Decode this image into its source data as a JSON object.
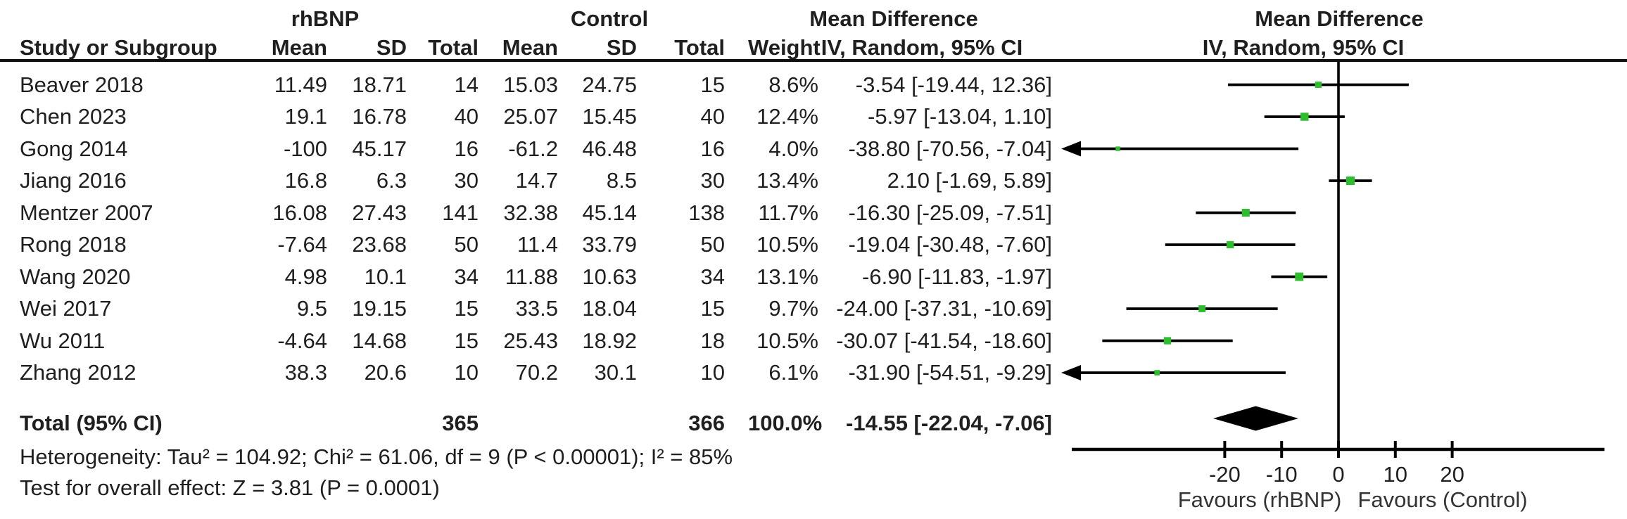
{
  "colors": {
    "marker_green": "#2DBE2D",
    "line_black": "#000000",
    "text_dark": "#1f1f1f",
    "text_gray": "#333333"
  },
  "header": {
    "columns": {
      "study": "Study or Subgroup",
      "mean": "Mean",
      "sd": "SD",
      "total": "Total",
      "weight": "Weight"
    }
  },
  "chart_data": {
    "type": "scatter",
    "subtype": "forest-plot-mean-difference",
    "group1_label": "rhBNP",
    "group2_label": "Control",
    "effect_label": "Mean Difference",
    "method_label": "IV, Random, 95% CI",
    "studies": [
      {
        "name": "Beaver 2018",
        "mean1": "11.49",
        "sd1": "18.71",
        "total1": "14",
        "mean2": "15.03",
        "sd2": "24.75",
        "total2": "15",
        "weight": "8.6%",
        "w": 8.6,
        "ci_text": "-3.54 [-19.44, 12.36]",
        "md": -3.54,
        "lo": -19.44,
        "hi": 12.36
      },
      {
        "name": "Chen 2023",
        "mean1": "19.1",
        "sd1": "16.78",
        "total1": "40",
        "mean2": "25.07",
        "sd2": "15.45",
        "total2": "40",
        "weight": "12.4%",
        "w": 12.4,
        "ci_text": "-5.97 [-13.04, 1.10]",
        "md": -5.97,
        "lo": -13.04,
        "hi": 1.1
      },
      {
        "name": "Gong 2014",
        "mean1": "-100",
        "sd1": "45.17",
        "total1": "16",
        "mean2": "-61.2",
        "sd2": "46.48",
        "total2": "16",
        "weight": "4.0%",
        "w": 4.0,
        "ci_text": "-38.80 [-70.56, -7.04]",
        "md": -38.8,
        "lo": -70.56,
        "hi": -7.04
      },
      {
        "name": "Jiang 2016",
        "mean1": "16.8",
        "sd1": "6.3",
        "total1": "30",
        "mean2": "14.7",
        "sd2": "8.5",
        "total2": "30",
        "weight": "13.4%",
        "w": 13.4,
        "ci_text": "2.10 [-1.69, 5.89]",
        "md": 2.1,
        "lo": -1.69,
        "hi": 5.89
      },
      {
        "name": "Mentzer 2007",
        "mean1": "16.08",
        "sd1": "27.43",
        "total1": "141",
        "mean2": "32.38",
        "sd2": "45.14",
        "total2": "138",
        "weight": "11.7%",
        "w": 11.7,
        "ci_text": "-16.30 [-25.09, -7.51]",
        "md": -16.3,
        "lo": -25.09,
        "hi": -7.51
      },
      {
        "name": "Rong 2018",
        "mean1": "-7.64",
        "sd1": "23.68",
        "total1": "50",
        "mean2": "11.4",
        "sd2": "33.79",
        "total2": "50",
        "weight": "10.5%",
        "w": 10.5,
        "ci_text": "-19.04 [-30.48, -7.60]",
        "md": -19.04,
        "lo": -30.48,
        "hi": -7.6
      },
      {
        "name": "Wang 2020",
        "mean1": "4.98",
        "sd1": "10.1",
        "total1": "34",
        "mean2": "11.88",
        "sd2": "10.63",
        "total2": "34",
        "weight": "13.1%",
        "w": 13.1,
        "ci_text": "-6.90 [-11.83, -1.97]",
        "md": -6.9,
        "lo": -11.83,
        "hi": -1.97
      },
      {
        "name": "Wei 2017",
        "mean1": "9.5",
        "sd1": "19.15",
        "total1": "15",
        "mean2": "33.5",
        "sd2": "18.04",
        "total2": "15",
        "weight": "9.7%",
        "w": 9.7,
        "ci_text": "-24.00 [-37.31, -10.69]",
        "md": -24.0,
        "lo": -37.31,
        "hi": -10.69
      },
      {
        "name": "Wu 2011",
        "mean1": "-4.64",
        "sd1": "14.68",
        "total1": "15",
        "mean2": "25.43",
        "sd2": "18.92",
        "total2": "18",
        "weight": "10.5%",
        "w": 10.5,
        "ci_text": "-30.07 [-41.54, -18.60]",
        "md": -30.07,
        "lo": -41.54,
        "hi": -18.6
      },
      {
        "name": "Zhang 2012",
        "mean1": "38.3",
        "sd1": "20.6",
        "total1": "10",
        "mean2": "70.2",
        "sd2": "30.1",
        "total2": "10",
        "weight": "6.1%",
        "w": 6.1,
        "ci_text": "-31.90 [-54.51, -9.29]",
        "md": -31.9,
        "lo": -54.51,
        "hi": -9.29
      }
    ],
    "total": {
      "label": "Total (95% CI)",
      "total1": "365",
      "total2": "366",
      "weight": "100.0%",
      "ci_text": "-14.55 [-22.04, -7.06]",
      "md": -14.55,
      "lo": -22.04,
      "hi": -7.06
    },
    "heterogeneity": "Heterogeneity: Tau² = 104.92; Chi² = 61.06, df = 9 (P < 0.00001); I² = 85%",
    "overall_effect": "Test for overall effect: Z = 3.81 (P = 0.0001)",
    "axis": {
      "ticks": [
        "-20",
        "-10",
        "0",
        "10",
        "20"
      ],
      "tick_values": [
        -20,
        -10,
        0,
        10,
        20
      ],
      "xlim": [
        -46.9,
        46.8
      ],
      "left_label": "Favours (rhBNP)",
      "right_label": "Favours (Control)"
    }
  }
}
